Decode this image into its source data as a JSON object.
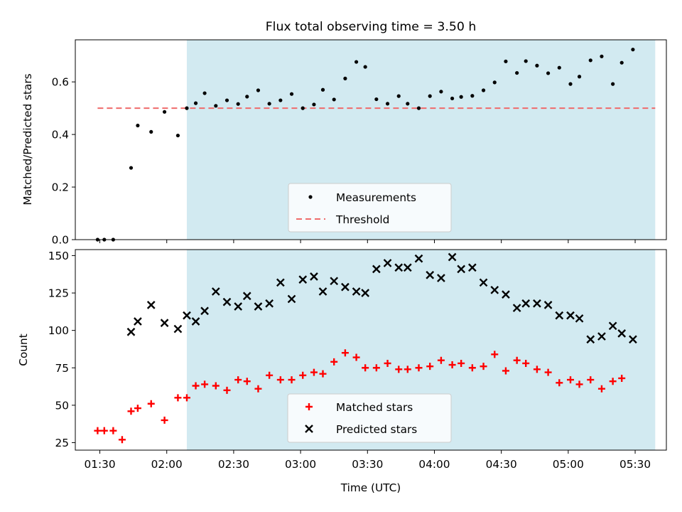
{
  "figure": {
    "title": "Flux total observing time = 3.50 h",
    "shade_color": "#add8e6",
    "threshold_color": "#ef6b6b"
  },
  "chart_data": [
    {
      "type": "scatter",
      "title": "Flux total observing time = 3.50 h",
      "xlabel": "",
      "ylabel": "Matched/Predicted stars",
      "xlim": [
        "01:19",
        "05:44"
      ],
      "ylim": [
        0,
        0.76
      ],
      "yticks": [
        0.0,
        0.2,
        0.4,
        0.6
      ],
      "yticklabels": [
        "0.0",
        "0.2",
        "0.4",
        "0.6"
      ],
      "shaded_span": [
        "02:09",
        "05:39"
      ],
      "legend": {
        "placement": "lower center",
        "entries": [
          "Measurements",
          "Threshold"
        ]
      },
      "threshold": {
        "name": "Threshold",
        "y": 0.5,
        "x_range": [
          "01:29",
          "05:39"
        ],
        "style": "dashed",
        "color": "#ef6b6b"
      },
      "series": [
        {
          "name": "Measurements",
          "marker": "dot",
          "color": "#000000",
          "points": [
            [
              "01:29",
              0.0
            ],
            [
              "01:32",
              0.0
            ],
            [
              "01:36",
              0.0
            ],
            [
              "01:44",
              0.273
            ],
            [
              "01:47",
              0.434
            ],
            [
              "01:53",
              0.41
            ],
            [
              "01:59",
              0.486
            ],
            [
              "02:05",
              0.396
            ],
            [
              "02:09",
              0.5
            ],
            [
              "02:13",
              0.519
            ],
            [
              "02:17",
              0.557
            ],
            [
              "02:22",
              0.509
            ],
            [
              "02:27",
              0.53
            ],
            [
              "02:32",
              0.516
            ],
            [
              "02:36",
              0.544
            ],
            [
              "02:41",
              0.568
            ],
            [
              "02:46",
              0.517
            ],
            [
              "02:51",
              0.53
            ],
            [
              "02:56",
              0.554
            ],
            [
              "03:01",
              0.5
            ],
            [
              "03:06",
              0.514
            ],
            [
              "03:10",
              0.57
            ],
            [
              "03:15",
              0.533
            ],
            [
              "03:20",
              0.613
            ],
            [
              "03:25",
              0.676
            ],
            [
              "03:29",
              0.657
            ],
            [
              "03:34",
              0.534
            ],
            [
              "03:39",
              0.517
            ],
            [
              "03:44",
              0.546
            ],
            [
              "03:48",
              0.517
            ],
            [
              "03:53",
              0.5
            ],
            [
              "03:58",
              0.546
            ],
            [
              "04:03",
              0.563
            ],
            [
              "04:08",
              0.537
            ],
            [
              "04:12",
              0.543
            ],
            [
              "04:17",
              0.547
            ],
            [
              "04:22",
              0.568
            ],
            [
              "04:27",
              0.598
            ],
            [
              "04:32",
              0.678
            ],
            [
              "04:37",
              0.634
            ],
            [
              "04:41",
              0.679
            ],
            [
              "04:46",
              0.662
            ],
            [
              "04:51",
              0.633
            ],
            [
              "04:56",
              0.654
            ],
            [
              "05:01",
              0.592
            ],
            [
              "05:05",
              0.62
            ],
            [
              "05:10",
              0.682
            ],
            [
              "05:15",
              0.697
            ],
            [
              "05:20",
              0.592
            ],
            [
              "05:24",
              0.673
            ],
            [
              "05:29",
              0.723
            ]
          ]
        }
      ]
    },
    {
      "type": "scatter",
      "title": "",
      "xlabel": "Time (UTC)",
      "ylabel": "Count",
      "xlim": [
        "01:19",
        "05:44"
      ],
      "ylim": [
        20,
        154
      ],
      "xticks": [
        "01:30",
        "02:00",
        "02:30",
        "03:00",
        "03:30",
        "04:00",
        "04:30",
        "05:00",
        "05:30"
      ],
      "yticks": [
        25,
        50,
        75,
        100,
        125,
        150
      ],
      "shaded_span": [
        "02:09",
        "05:39"
      ],
      "legend": {
        "placement": "lower center",
        "entries": [
          "Matched stars",
          "Predicted stars"
        ]
      },
      "series": [
        {
          "name": "Matched stars",
          "marker": "plus",
          "color": "#ff0000",
          "points": [
            [
              "01:29",
              33
            ],
            [
              "01:32",
              33
            ],
            [
              "01:36",
              33
            ],
            [
              "01:40",
              27
            ],
            [
              "01:44",
              46
            ],
            [
              "01:47",
              48
            ],
            [
              "01:53",
              51
            ],
            [
              "01:59",
              40
            ],
            [
              "02:05",
              55
            ],
            [
              "02:09",
              55
            ],
            [
              "02:13",
              63
            ],
            [
              "02:17",
              64
            ],
            [
              "02:22",
              63
            ],
            [
              "02:27",
              60
            ],
            [
              "02:32",
              67
            ],
            [
              "02:36",
              66
            ],
            [
              "02:41",
              61
            ],
            [
              "02:46",
              70
            ],
            [
              "02:51",
              67
            ],
            [
              "02:56",
              67
            ],
            [
              "03:01",
              70
            ],
            [
              "03:06",
              72
            ],
            [
              "03:10",
              71
            ],
            [
              "03:15",
              79
            ],
            [
              "03:20",
              85
            ],
            [
              "03:25",
              82
            ],
            [
              "03:29",
              75
            ],
            [
              "03:34",
              75
            ],
            [
              "03:39",
              78
            ],
            [
              "03:44",
              74
            ],
            [
              "03:48",
              74
            ],
            [
              "03:53",
              75
            ],
            [
              "03:58",
              76
            ],
            [
              "04:03",
              80
            ],
            [
              "04:08",
              77
            ],
            [
              "04:12",
              78
            ],
            [
              "04:17",
              75
            ],
            [
              "04:22",
              76
            ],
            [
              "04:27",
              84
            ],
            [
              "04:32",
              73
            ],
            [
              "04:37",
              80
            ],
            [
              "04:41",
              78
            ],
            [
              "04:46",
              74
            ],
            [
              "04:51",
              72
            ],
            [
              "04:56",
              65
            ],
            [
              "05:01",
              67
            ],
            [
              "05:05",
              64
            ],
            [
              "05:10",
              67
            ],
            [
              "05:15",
              61
            ],
            [
              "05:20",
              66
            ],
            [
              "05:24",
              68
            ]
          ]
        },
        {
          "name": "Predicted stars",
          "marker": "x",
          "color": "#000000",
          "points": [
            [
              "01:44",
              99
            ],
            [
              "01:47",
              106
            ],
            [
              "01:53",
              117
            ],
            [
              "01:59",
              105
            ],
            [
              "02:05",
              101
            ],
            [
              "02:09",
              110
            ],
            [
              "02:13",
              106
            ],
            [
              "02:17",
              113
            ],
            [
              "02:22",
              126
            ],
            [
              "02:27",
              119
            ],
            [
              "02:32",
              116
            ],
            [
              "02:36",
              123
            ],
            [
              "02:41",
              116
            ],
            [
              "02:46",
              118
            ],
            [
              "02:51",
              132
            ],
            [
              "02:56",
              121
            ],
            [
              "03:01",
              134
            ],
            [
              "03:06",
              136
            ],
            [
              "03:10",
              126
            ],
            [
              "03:15",
              133
            ],
            [
              "03:20",
              129
            ],
            [
              "03:25",
              126
            ],
            [
              "03:29",
              125
            ],
            [
              "03:34",
              141
            ],
            [
              "03:39",
              145
            ],
            [
              "03:44",
              142
            ],
            [
              "03:48",
              142
            ],
            [
              "03:53",
              148
            ],
            [
              "03:58",
              137
            ],
            [
              "04:03",
              135
            ],
            [
              "04:08",
              149
            ],
            [
              "04:12",
              141
            ],
            [
              "04:17",
              142
            ],
            [
              "04:22",
              132
            ],
            [
              "04:27",
              127
            ],
            [
              "04:32",
              124
            ],
            [
              "04:37",
              115
            ],
            [
              "04:41",
              118
            ],
            [
              "04:46",
              118
            ],
            [
              "04:51",
              117
            ],
            [
              "04:56",
              110
            ],
            [
              "05:01",
              110
            ],
            [
              "05:05",
              108
            ],
            [
              "05:10",
              94
            ],
            [
              "05:15",
              96
            ],
            [
              "05:20",
              103
            ],
            [
              "05:24",
              98
            ],
            [
              "05:29",
              94
            ]
          ]
        }
      ]
    }
  ]
}
